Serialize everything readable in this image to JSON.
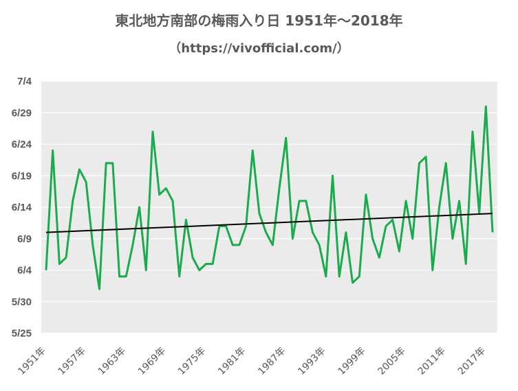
{
  "chart_data": {
    "type": "line",
    "title": "東北地方南部の梅雨入り日 1951年～2018年",
    "subtitle": "（https://vivofficial.com/）",
    "y_ticks": [
      "7/4",
      "6/29",
      "6/24",
      "6/19",
      "6/14",
      "6/9",
      "6/4",
      "5/30",
      "5/25"
    ],
    "x_ticks": [
      "1951年",
      "1957年",
      "1963年",
      "1969年",
      "1975年",
      "1981年",
      "1987年",
      "1993年",
      "1999年",
      "2005年",
      "2011年",
      "2017年"
    ],
    "xlim": [
      1951,
      2018
    ],
    "ylim": [
      "5/25",
      "7/4"
    ],
    "grid": true,
    "series": [
      {
        "x": [
          1951,
          1952,
          1953,
          1954,
          1955,
          1956,
          1957,
          1958,
          1959,
          1960,
          1961,
          1962,
          1963,
          1964,
          1965,
          1966,
          1967,
          1968,
          1969,
          1970,
          1971,
          1972,
          1973,
          1974,
          1975,
          1976,
          1977,
          1978,
          1979,
          1980,
          1981,
          1982,
          1983,
          1984,
          1985,
          1986,
          1987,
          1988,
          1989,
          1990,
          1991,
          1992,
          1993,
          1994,
          1995,
          1996,
          1997,
          1998,
          1999,
          2000,
          2001,
          2002,
          2003,
          2004,
          2005,
          2006,
          2007,
          2008,
          2009,
          2010,
          2011,
          2012,
          2013,
          2014,
          2015,
          2016,
          2017,
          2018
        ],
        "values": [
          "6/4",
          "6/23",
          "6/5",
          "6/6",
          "6/15",
          "6/20",
          "6/18",
          "6/8",
          "6/1",
          "6/21",
          "6/21",
          "6/3",
          "6/3",
          "6/8",
          "6/14",
          "6/4",
          "6/26",
          "6/16",
          "6/17",
          "6/15",
          "6/3",
          "6/12",
          "6/6",
          "6/4",
          "6/5",
          "6/5",
          "6/11",
          "6/11",
          "6/8",
          "6/8",
          "6/11",
          "6/23",
          "6/13",
          "6/10",
          "6/8",
          "6/17",
          "6/25",
          "6/9",
          "6/15",
          "6/15",
          "6/10",
          "6/8",
          "6/3",
          "6/19",
          "6/3",
          "6/10",
          "6/2",
          "6/3",
          "6/16",
          "6/9",
          "6/6",
          "6/11",
          "6/12",
          "6/7",
          "6/15",
          "6/9",
          "6/21",
          "6/22",
          "6/4",
          "6/14",
          "6/21",
          "6/9",
          "6/15",
          "6/5",
          "6/26",
          "6/13",
          "6/30",
          "6/10"
        ],
        "color": "#1aab4c"
      }
    ],
    "trendline": {
      "x": [
        1951,
        2018
      ],
      "values": [
        "6/10",
        "6/13"
      ],
      "color": "#000000"
    }
  }
}
